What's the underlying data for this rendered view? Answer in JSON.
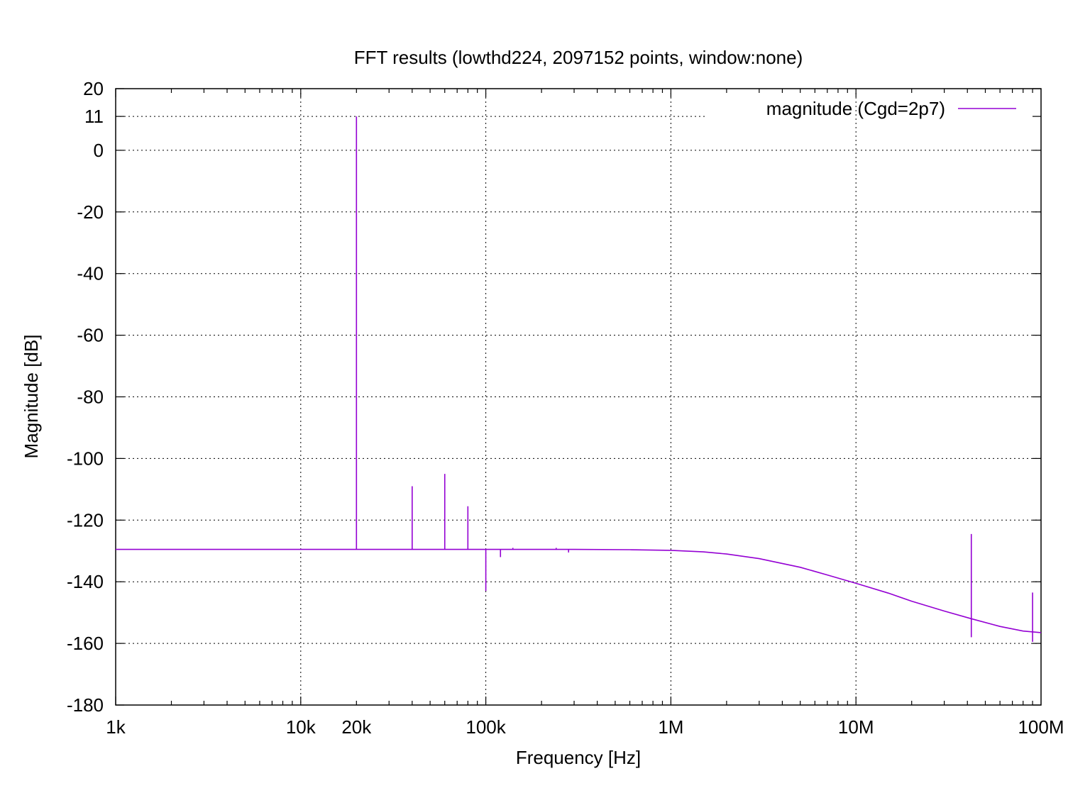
{
  "chart_data": {
    "type": "line",
    "title": "FFT results (lowthd224, 2097152 points, window:none)",
    "xlabel": "Frequency [Hz]",
    "ylabel": "Magnitude [dB]",
    "x_scale": "log",
    "xlim": [
      1000,
      100000000
    ],
    "ylim": [
      -180,
      20
    ],
    "grid": true,
    "legend_position": "top-right",
    "x_ticks": [
      {
        "value": 1000,
        "label": "1k"
      },
      {
        "value": 10000,
        "label": "10k"
      },
      {
        "value": 20000,
        "label": "20k"
      },
      {
        "value": 100000,
        "label": "100k"
      },
      {
        "value": 1000000,
        "label": "1M"
      },
      {
        "value": 10000000,
        "label": "10M"
      },
      {
        "value": 100000000,
        "label": "100M"
      }
    ],
    "y_ticks": [
      {
        "value": 20,
        "label": "20"
      },
      {
        "value": 11,
        "label": "11"
      },
      {
        "value": 0,
        "label": "0"
      },
      {
        "value": -20,
        "label": "-20"
      },
      {
        "value": -40,
        "label": "-40"
      },
      {
        "value": -60,
        "label": "-60"
      },
      {
        "value": -80,
        "label": "-80"
      },
      {
        "value": -100,
        "label": "-100"
      },
      {
        "value": -120,
        "label": "-120"
      },
      {
        "value": -140,
        "label": "-140"
      },
      {
        "value": -160,
        "label": "-160"
      },
      {
        "value": -180,
        "label": "-180"
      }
    ],
    "series": [
      {
        "name": "magnitude (Cgd=2p7)",
        "color": "#9400d3",
        "baseline": [
          [
            1000,
            -129.5
          ],
          [
            100000,
            -129.5
          ],
          [
            300000,
            -129.5
          ],
          [
            600000,
            -129.6
          ],
          [
            1000000,
            -129.8
          ],
          [
            1500000,
            -130.3
          ],
          [
            2000000,
            -131.0
          ],
          [
            3000000,
            -132.5
          ],
          [
            5000000,
            -135.3
          ],
          [
            7000000,
            -137.8
          ],
          [
            10000000,
            -140.5
          ],
          [
            15000000,
            -143.7
          ],
          [
            20000000,
            -146.3
          ],
          [
            30000000,
            -149.5
          ],
          [
            42000000,
            -152.0
          ],
          [
            60000000,
            -154.5
          ],
          [
            80000000,
            -156.0
          ],
          [
            100000000,
            -156.5
          ]
        ],
        "spikes": [
          [
            20000,
            11
          ],
          [
            40000,
            -109
          ],
          [
            60000,
            -105
          ],
          [
            80000,
            -115.5
          ],
          [
            100000,
            -143
          ],
          [
            120000,
            -132
          ],
          [
            140000,
            -129
          ],
          [
            240000,
            -129
          ],
          [
            280000,
            -130.5
          ],
          [
            42000000,
            -124.5
          ],
          [
            42000000,
            -158
          ],
          [
            90000000,
            -143.5
          ],
          [
            90000000,
            -159.5
          ]
        ]
      }
    ]
  }
}
